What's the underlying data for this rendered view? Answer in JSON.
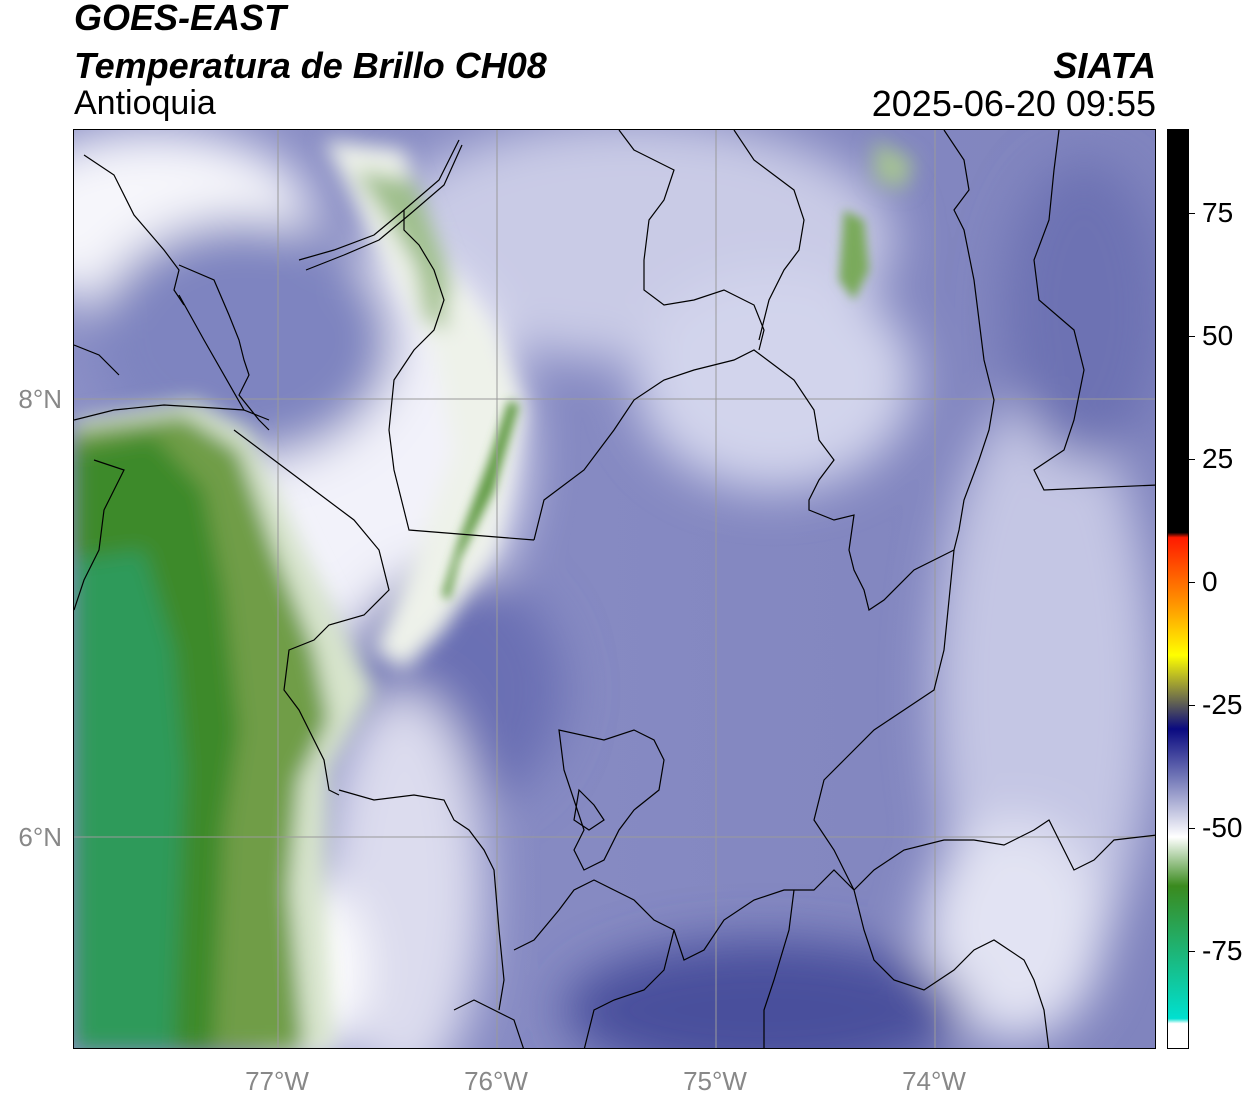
{
  "header": {
    "satellite": "GOES-EAST",
    "product": "Temperatura de Brillo CH08",
    "region": "Antioquia",
    "organization": "SIATA",
    "datetime": "2025-06-20 09:55"
  },
  "map": {
    "lat_ticks": [
      {
        "label": "8°N",
        "value": 8
      },
      {
        "label": "6°N",
        "value": 6
      }
    ],
    "lon_ticks": [
      {
        "label": "77°W",
        "value": -77
      },
      {
        "label": "76°W",
        "value": -76
      },
      {
        "label": "75°W",
        "value": -75
      },
      {
        "label": "74°W",
        "value": -74
      }
    ],
    "extent": {
      "lon_min": -77.94,
      "lon_max": -72.99,
      "lat_min": 5.03,
      "lat_max": 9.23
    }
  },
  "colorbar": {
    "range": [
      -95,
      92
    ],
    "ticks": [
      {
        "label": "75",
        "value": 75
      },
      {
        "label": "50",
        "value": 50
      },
      {
        "label": "25",
        "value": 25
      },
      {
        "label": "0",
        "value": 0
      },
      {
        "label": "-25",
        "value": -25
      },
      {
        "label": "-50",
        "value": -50
      },
      {
        "label": "-75",
        "value": -75
      }
    ],
    "colors": {
      "hot": "#000000",
      "red": "#ff1a00",
      "orange": "#ff9900",
      "yellow": "#ffff00",
      "navy": "#0a0a80",
      "slate": "#7479b8",
      "white": "#ffffff",
      "green": "#3a8a1e",
      "teal": "#00e0d0"
    }
  }
}
